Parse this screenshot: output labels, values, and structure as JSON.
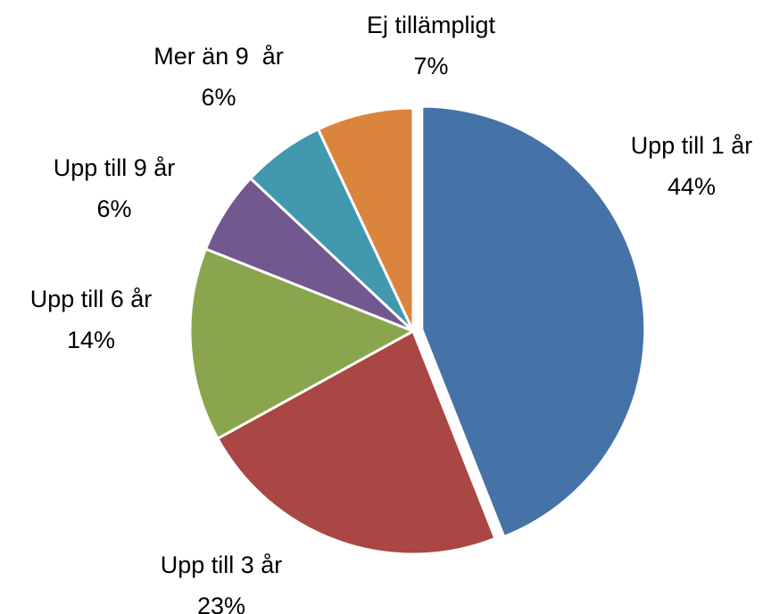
{
  "chart_data": {
    "type": "pie",
    "categories": [
      "Upp till 1 år",
      "Upp till 3 år",
      "Upp till 6 år",
      "Upp till 9 år",
      "Mer än 9  år",
      "Ej tillämpligt"
    ],
    "values": [
      44,
      23,
      14,
      6,
      6,
      7
    ],
    "value_labels": [
      "44%",
      "23%",
      "14%",
      "6%",
      "6%",
      "7%"
    ],
    "colors": [
      "#4572a7",
      "#aa4643",
      "#89a54e",
      "#71588f",
      "#4198af",
      "#db843d"
    ]
  }
}
